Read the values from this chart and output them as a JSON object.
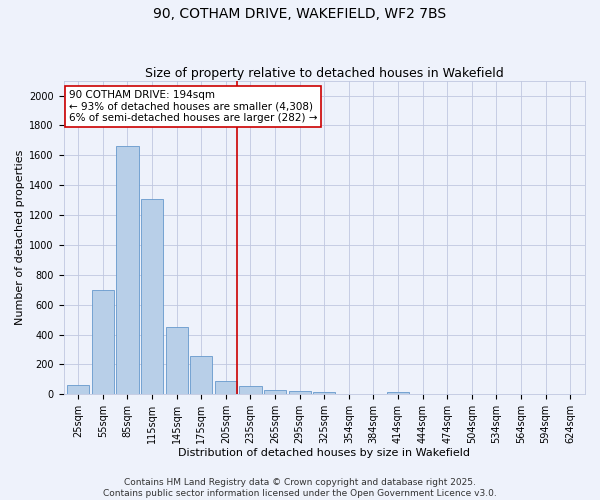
{
  "title_line1": "90, COTHAM DRIVE, WAKEFIELD, WF2 7BS",
  "title_line2": "Size of property relative to detached houses in Wakefield",
  "xlabel": "Distribution of detached houses by size in Wakefield",
  "ylabel": "Number of detached properties",
  "categories": [
    "25sqm",
    "55sqm",
    "85sqm",
    "115sqm",
    "145sqm",
    "175sqm",
    "205sqm",
    "235sqm",
    "265sqm",
    "295sqm",
    "325sqm",
    "354sqm",
    "384sqm",
    "414sqm",
    "444sqm",
    "474sqm",
    "504sqm",
    "534sqm",
    "564sqm",
    "594sqm",
    "624sqm"
  ],
  "values": [
    65,
    700,
    1660,
    1305,
    450,
    255,
    90,
    55,
    30,
    25,
    12,
    0,
    0,
    15,
    0,
    0,
    0,
    0,
    0,
    0,
    0
  ],
  "bar_color": "#b8cfe8",
  "bar_edge_color": "#6699cc",
  "vline_color": "#cc0000",
  "annotation_text": "90 COTHAM DRIVE: 194sqm\n← 93% of detached houses are smaller (4,308)\n6% of semi-detached houses are larger (282) →",
  "annotation_box_color": "#ffffff",
  "annotation_box_edge": "#cc0000",
  "ylim": [
    0,
    2100
  ],
  "yticks": [
    0,
    200,
    400,
    600,
    800,
    1000,
    1200,
    1400,
    1600,
    1800,
    2000
  ],
  "footer_text": "Contains HM Land Registry data © Crown copyright and database right 2025.\nContains public sector information licensed under the Open Government Licence v3.0.",
  "background_color": "#eef2fb",
  "grid_color": "#c0c8e0",
  "title_fontsize": 10,
  "subtitle_fontsize": 9,
  "axis_label_fontsize": 8,
  "tick_fontsize": 7,
  "annotation_fontsize": 7.5,
  "footer_fontsize": 6.5
}
